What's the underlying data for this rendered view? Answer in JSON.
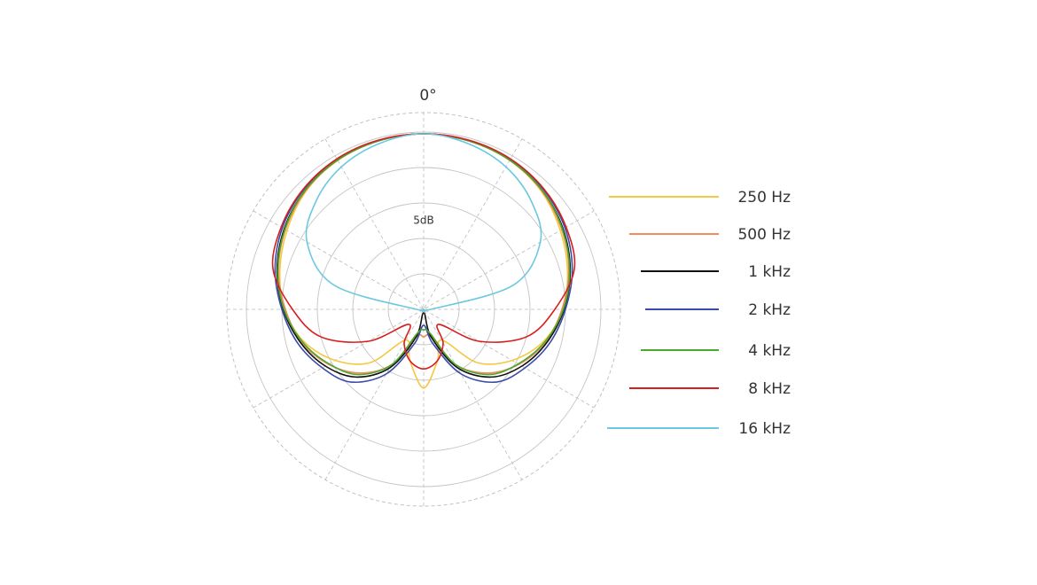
{
  "chart_data": {
    "type": "polar",
    "angle_label": "0°",
    "r_label": "5dB",
    "theta": [
      0,
      15,
      30,
      45,
      60,
      75,
      90,
      105,
      120,
      135,
      150,
      165,
      180,
      195,
      210,
      225,
      240,
      255,
      270,
      285,
      300,
      315,
      330,
      345
    ],
    "rlim": [
      -25,
      2.75
    ],
    "rticks": [
      -20,
      -15,
      -10,
      -5,
      0
    ],
    "series": [
      {
        "name": "250 Hz",
        "color": "#f5c842",
        "values": [
          -0.25,
          -0.4,
          -0.75,
          -1.5,
          -2.75,
          -4,
          -5.4,
          -7.5,
          -10.6,
          -14.4,
          -20,
          -17.5,
          -13.9,
          -17.5,
          -20,
          -14.4,
          -10.6,
          -7.5,
          -5.4,
          -4,
          -2.75,
          -1.5,
          -0.75,
          -0.4
        ]
      },
      {
        "name": "500 Hz",
        "color": "#f28a5c",
        "values": [
          -0.25,
          -0.4,
          -0.7,
          -1.4,
          -2.5,
          -3.8,
          -5.5,
          -7.2,
          -9.5,
          -12.3,
          -16,
          -21,
          -21.1,
          -21,
          -16,
          -12.3,
          -9.5,
          -7.2,
          -5.5,
          -3.8,
          -2.5,
          -1.4,
          -0.7,
          -0.4
        ]
      },
      {
        "name": "1 kHz",
        "color": "#111111",
        "values": [
          -0.25,
          -0.4,
          -0.7,
          -1.3,
          -2.3,
          -3.6,
          -5.2,
          -7,
          -9,
          -11.5,
          -15.5,
          -21,
          -24.5,
          -21,
          -15.5,
          -11.5,
          -9,
          -7,
          -5.2,
          -3.6,
          -2.3,
          -1.3,
          -0.7,
          -0.4
        ]
      },
      {
        "name": "2 kHz",
        "color": "#3a4aa8",
        "values": [
          -0.25,
          -0.4,
          -0.6,
          -1.1,
          -2,
          -3.3,
          -5,
          -6.6,
          -8.5,
          -10.5,
          -14.5,
          -20,
          -22.75,
          -20,
          -14.5,
          -10.5,
          -8.5,
          -6.6,
          -5,
          -3.3,
          -2,
          -1.1,
          -0.6,
          -0.4
        ]
      },
      {
        "name": "4 kHz",
        "color": "#4aaa2e",
        "values": [
          -0.25,
          -0.4,
          -0.7,
          -1.3,
          -2.4,
          -3.7,
          -5.3,
          -7.3,
          -9.6,
          -12,
          -16,
          -21.5,
          -22.1,
          -21.5,
          -16,
          -12,
          -9.6,
          -7.3,
          -5.3,
          -3.7,
          -2.4,
          -1.3,
          -0.7,
          -0.4
        ]
      },
      {
        "name": "8 kHz",
        "color": "#d81e1e",
        "values": [
          -0.25,
          -0.3,
          -0.5,
          -1,
          -1.8,
          -3,
          -6.5,
          -10,
          -16,
          -22,
          -19.5,
          -17.5,
          -16.6,
          -17.5,
          -19.5,
          -22,
          -16,
          -10,
          -6.5,
          -3,
          -1.8,
          -1,
          -0.5,
          -0.3
        ]
      },
      {
        "name": "16 kHz",
        "color": "#6cc8e0",
        "values": [
          -0.25,
          -0.8,
          -1.8,
          -3.5,
          -6,
          -12,
          -24,
          -25,
          -25,
          -25,
          -25,
          -25,
          -25,
          -25,
          -25,
          -25,
          -25,
          -25,
          -24,
          -12,
          -6,
          -3.5,
          -1.8,
          -0.8
        ]
      }
    ]
  }
}
